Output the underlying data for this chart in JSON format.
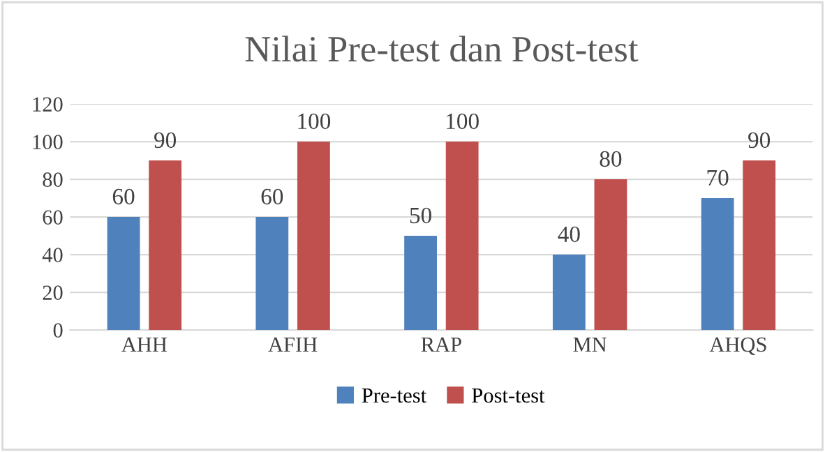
{
  "chart_data": {
    "type": "bar",
    "title": "Nilai Pre-test dan Post-test",
    "categories": [
      "AHH",
      "AFIH",
      "RAP",
      "MN",
      "AHQS"
    ],
    "series": [
      {
        "name": "Pre-test",
        "color": "#4f81bd",
        "values": [
          60,
          60,
          50,
          40,
          70
        ]
      },
      {
        "name": "Post-test",
        "color": "#c0504d",
        "values": [
          90,
          100,
          100,
          80,
          90
        ]
      }
    ],
    "ylim": [
      0,
      120
    ],
    "yticks": [
      0,
      20,
      40,
      60,
      80,
      100,
      120
    ],
    "grid": "y",
    "legend": "bottom",
    "data_labels": true
  }
}
